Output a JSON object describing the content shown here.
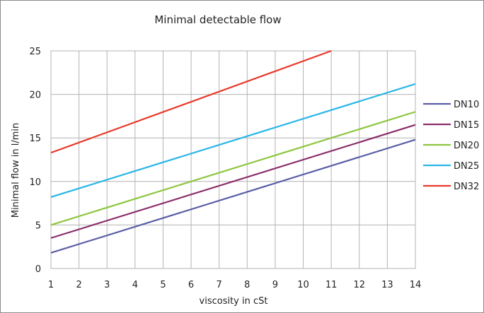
{
  "chart_data": {
    "type": "line",
    "title": "Minimal detectable flow",
    "xlabel": "viscosity in cSt",
    "ylabel": "Minimal flow in l/min",
    "xlim": [
      1,
      14
    ],
    "ylim": [
      0,
      25
    ],
    "x_ticks": [
      "1",
      "2",
      "3",
      "4",
      "5",
      "6",
      "7",
      "8",
      "9",
      "10",
      "11",
      "12",
      "13",
      "14"
    ],
    "y_ticks": [
      "0",
      "5",
      "10",
      "15",
      "20",
      "25"
    ],
    "grid": true,
    "legend_position": "right",
    "series": [
      {
        "name": "DN10",
        "color": "#5b5ea6",
        "x": [
          1,
          14
        ],
        "y": [
          1.8,
          14.8
        ]
      },
      {
        "name": "DN15",
        "color": "#8b2e6b",
        "x": [
          1,
          14
        ],
        "y": [
          3.5,
          16.5
        ]
      },
      {
        "name": "DN20",
        "color": "#8dc63f",
        "x": [
          1,
          14
        ],
        "y": [
          5.0,
          18.0
        ]
      },
      {
        "name": "DN25",
        "color": "#29b6e8",
        "x": [
          1,
          14
        ],
        "y": [
          8.2,
          21.2
        ]
      },
      {
        "name": "DN32",
        "color": "#e8392a",
        "x": [
          1,
          11
        ],
        "y": [
          13.3,
          25.0
        ]
      }
    ]
  }
}
